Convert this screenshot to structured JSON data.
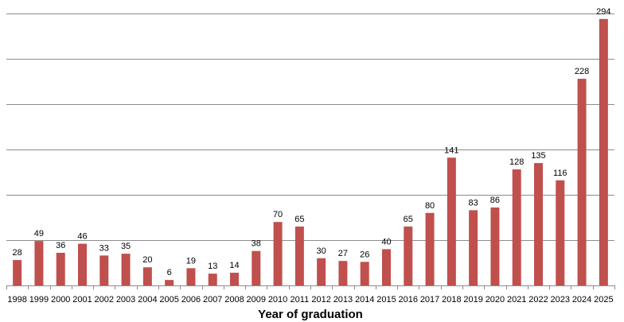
{
  "chart_data": {
    "type": "bar",
    "categories": [
      "1998",
      "1999",
      "2000",
      "2001",
      "2002",
      "2003",
      "2004",
      "2005",
      "2006",
      "2007",
      "2008",
      "2009",
      "2010",
      "2011",
      "2012",
      "2013",
      "2014",
      "2015",
      "2016",
      "2017",
      "2018",
      "2019",
      "2020",
      "2021",
      "2022",
      "2023",
      "2024",
      "2025"
    ],
    "values": [
      28,
      49,
      36,
      46,
      33,
      35,
      20,
      6,
      19,
      13,
      14,
      38,
      70,
      65,
      30,
      27,
      26,
      40,
      65,
      80,
      141,
      83,
      86,
      128,
      135,
      116,
      228,
      294
    ],
    "title": "",
    "xlabel": "Year of graduation",
    "ylabel": "",
    "ylim": [
      0,
      300
    ],
    "y_gridlines": [
      0,
      50,
      100,
      150,
      200,
      250,
      300
    ],
    "grid": true,
    "legend": "none",
    "bar_color": "#c0504d",
    "grid_color": "#8c8c8c"
  }
}
